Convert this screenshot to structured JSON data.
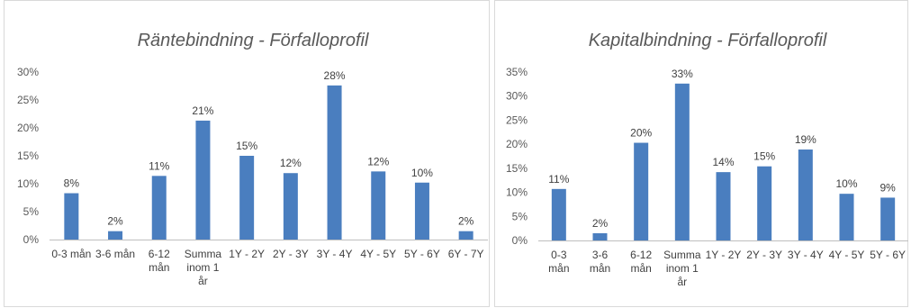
{
  "colors": {
    "bar": "#4a7ebf",
    "axis": "#bfbfbf",
    "text": "#595959"
  },
  "chart_data": [
    {
      "type": "bar",
      "title": "Räntebindning - Förfalloprofil",
      "categories": [
        "0-3 mån",
        "3-6 mån",
        "6-12 mån",
        "Summa inom 1 år",
        "1Y - 2Y",
        "2Y - 3Y",
        "3Y - 4Y",
        "4Y - 5Y",
        "5Y - 6Y",
        "6Y - 7Y"
      ],
      "category_lines": [
        [
          "0-3 mån"
        ],
        [
          "3-6 mån"
        ],
        [
          "6-12",
          "mån"
        ],
        [
          "Summa",
          "inom 1",
          "år"
        ],
        [
          "1Y - 2Y"
        ],
        [
          "2Y - 3Y"
        ],
        [
          "3Y - 4Y"
        ],
        [
          "4Y - 5Y"
        ],
        [
          "5Y - 6Y"
        ],
        [
          "6Y - 7Y"
        ]
      ],
      "values": [
        8.3,
        1.5,
        11.4,
        21.3,
        15.0,
        11.9,
        27.6,
        12.2,
        10.2,
        1.5
      ],
      "data_labels": [
        "8%",
        "2%",
        "11%",
        "21%",
        "15%",
        "12%",
        "28%",
        "12%",
        "10%",
        "2%"
      ],
      "yticks": [
        "0%",
        "5%",
        "10%",
        "15%",
        "20%",
        "25%",
        "30%"
      ],
      "ylim": [
        0,
        30
      ],
      "grid": false,
      "legend": "none"
    },
    {
      "type": "bar",
      "title": "Kapitalbindning - Förfalloprofil",
      "categories": [
        "0-3 mån",
        "3-6 mån",
        "6-12 mån",
        "Summa inom 1 år",
        "1Y - 2Y",
        "2Y - 3Y",
        "3Y - 4Y",
        "4Y - 5Y",
        "5Y - 6Y"
      ],
      "category_lines": [
        [
          "0-3",
          "mån"
        ],
        [
          "3-6",
          "mån"
        ],
        [
          "6-12",
          "mån"
        ],
        [
          "Summa",
          "inom 1",
          "år"
        ],
        [
          "1Y - 2Y"
        ],
        [
          "2Y - 3Y"
        ],
        [
          "3Y - 4Y"
        ],
        [
          "4Y - 5Y"
        ],
        [
          "5Y - 6Y"
        ]
      ],
      "values": [
        10.7,
        1.5,
        20.3,
        32.6,
        14.2,
        15.4,
        18.9,
        9.7,
        8.9
      ],
      "data_labels": [
        "11%",
        "2%",
        "20%",
        "33%",
        "14%",
        "15%",
        "19%",
        "10%",
        "9%"
      ],
      "yticks": [
        "0%",
        "5%",
        "10%",
        "15%",
        "20%",
        "25%",
        "30%",
        "35%"
      ],
      "ylim": [
        0,
        35
      ],
      "grid": false,
      "legend": "none"
    }
  ]
}
